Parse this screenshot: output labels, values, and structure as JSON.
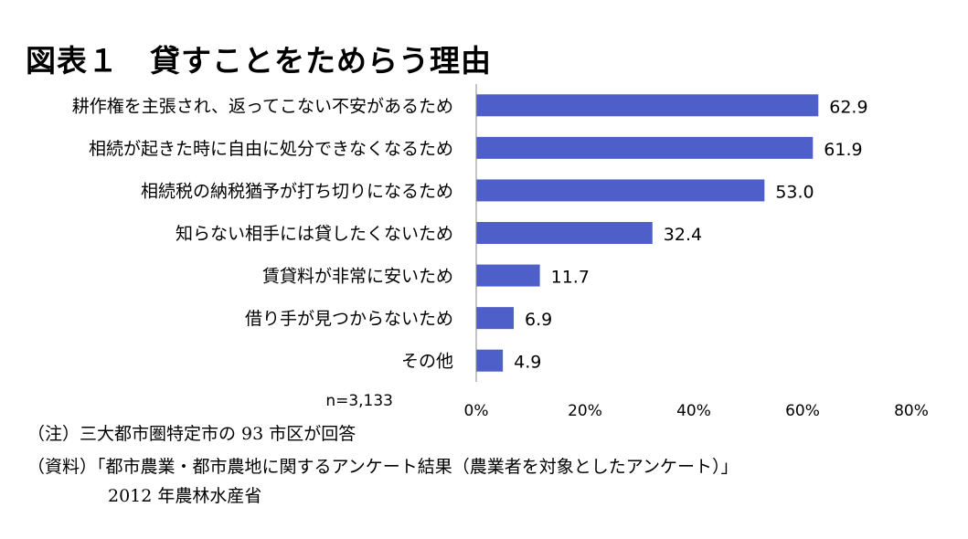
{
  "title": "図表１　貸すことをためらう理由",
  "chart_data": {
    "type": "bar",
    "orientation": "horizontal",
    "categories": [
      "耕作権を主張され、返ってこない不安があるため",
      "相続が起きた時に自由に処分できなくなるため",
      "相続税の納税猶予が打ち切りになるため",
      "知らない相手には貸したくないため",
      "賃貸料が非常に安いため",
      "借り手が見つからないため",
      "その他"
    ],
    "values": [
      62.9,
      61.9,
      53.0,
      32.4,
      11.7,
      6.9,
      4.9
    ],
    "value_labels": [
      "62.9",
      "61.9",
      "53.0",
      "32.4",
      "11.7",
      "6.9",
      "4.9"
    ],
    "xlim": [
      0,
      80
    ],
    "xticks": [
      "0%",
      "20%",
      "40%",
      "60%",
      "80%"
    ],
    "grid": false,
    "bar_color": "#4f5fc9",
    "sample_size": "n=3,133"
  },
  "notes": {
    "note": "（注）三大都市圏特定市の 93 市区が回答",
    "source_line1": "（資料）「都市農業・都市農地に関するアンケート結果（農業者を対象としたアンケート）」",
    "source_line2": "2012 年農林水産省"
  }
}
